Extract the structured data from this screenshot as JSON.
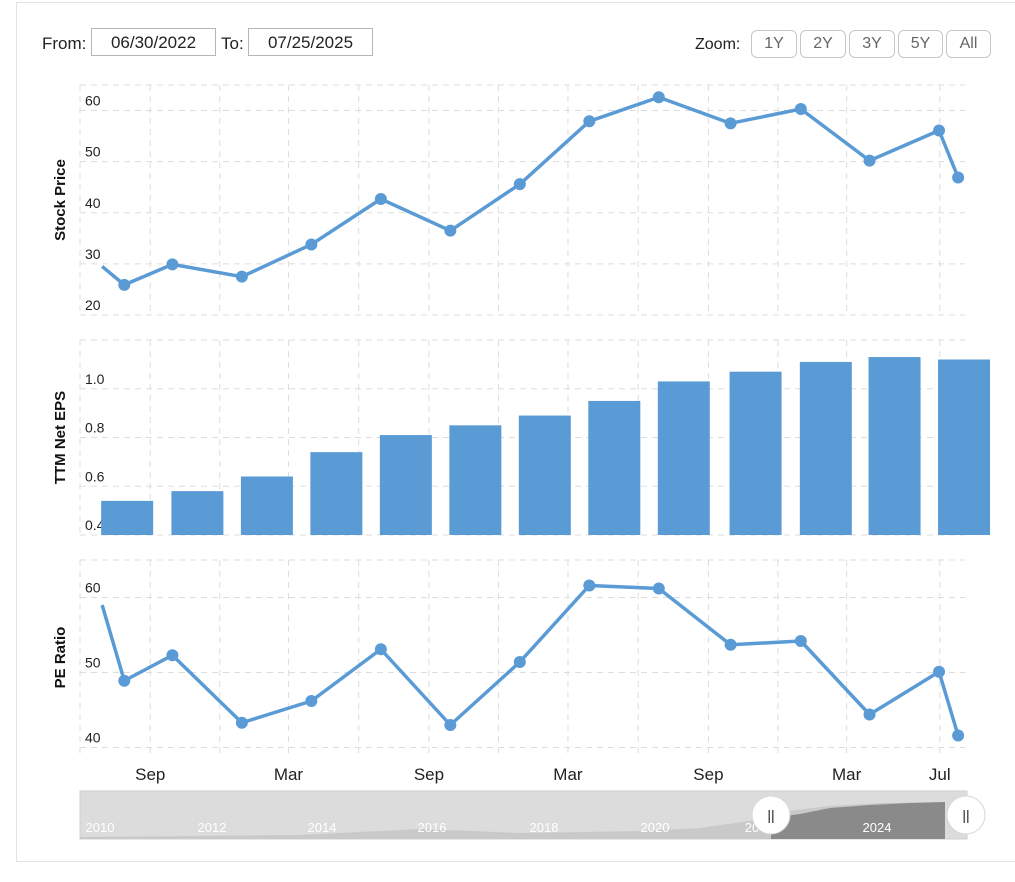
{
  "range": {
    "from_label": "From:",
    "from_value": "06/30/2022",
    "to_label": "To:",
    "to_value": "07/25/2025"
  },
  "zoom": {
    "label": "Zoom:",
    "buttons": [
      "1Y",
      "2Y",
      "3Y",
      "5Y",
      "All"
    ]
  },
  "colors": {
    "series": "#5b9bd5",
    "grid": "#dddddd",
    "navigator_bg": "#dcdcdc",
    "navigator_selected": "#8a8a8a"
  },
  "chart_data": [
    {
      "type": "line",
      "ylabel": "Stock Price",
      "ylim": [
        20,
        65
      ],
      "yticks": [
        20,
        30,
        40,
        50,
        60
      ],
      "x": [
        "2022-06-30",
        "2022-07-29",
        "2022-09-30",
        "2022-12-30",
        "2023-03-31",
        "2023-06-30",
        "2023-09-29",
        "2023-12-29",
        "2024-03-29",
        "2024-06-28",
        "2024-09-30",
        "2024-12-31",
        "2025-03-31",
        "2025-06-30",
        "2025-07-25"
      ],
      "values": [
        29.5,
        25.9,
        29.9,
        27.5,
        33.8,
        42.7,
        36.5,
        45.6,
        57.9,
        62.6,
        57.5,
        60.3,
        50.2,
        56.1,
        46.9
      ],
      "x_tick_labels": [
        "Sep",
        "Mar",
        "Sep",
        "Mar",
        "Sep",
        "Mar",
        "Jul"
      ],
      "grid": true
    },
    {
      "type": "bar",
      "ylabel": "TTM Net EPS",
      "ylim": [
        0.4,
        1.2
      ],
      "yticks": [
        0.4,
        0.6,
        0.8,
        1.0
      ],
      "x": [
        "2022-06-30",
        "2022-09-30",
        "2022-12-30",
        "2023-03-31",
        "2023-06-30",
        "2023-09-29",
        "2023-12-29",
        "2024-03-29",
        "2024-06-28",
        "2024-09-30",
        "2024-12-31",
        "2025-03-31",
        "2025-06-30"
      ],
      "values": [
        0.54,
        0.58,
        0.64,
        0.74,
        0.81,
        0.85,
        0.89,
        0.95,
        1.03,
        1.07,
        1.11,
        1.13,
        1.12
      ],
      "grid": true
    },
    {
      "type": "line",
      "ylabel": "PE Ratio",
      "ylim": [
        39,
        65
      ],
      "yticks": [
        40,
        50,
        60
      ],
      "x": [
        "2022-06-30",
        "2022-07-29",
        "2022-09-30",
        "2022-12-30",
        "2023-03-31",
        "2023-06-30",
        "2023-09-29",
        "2023-12-29",
        "2024-03-29",
        "2024-06-28",
        "2024-09-30",
        "2024-12-31",
        "2025-03-31",
        "2025-06-30",
        "2025-07-25"
      ],
      "values": [
        59.0,
        48.9,
        52.3,
        43.3,
        46.2,
        53.1,
        43.0,
        51.4,
        61.6,
        61.2,
        53.7,
        54.2,
        44.4,
        50.1,
        41.6
      ],
      "x_tick_labels": [
        "Sep",
        "Mar",
        "Sep",
        "Mar",
        "Sep",
        "Mar",
        "Jul"
      ],
      "grid": true
    }
  ],
  "navigator": {
    "years": [
      "2010",
      "2012",
      "2014",
      "2016",
      "2018",
      "2020",
      "20",
      "2024"
    ],
    "selected_from": "2022-06-30",
    "selected_to": "2025-07-25",
    "handle_glyph": "||"
  }
}
